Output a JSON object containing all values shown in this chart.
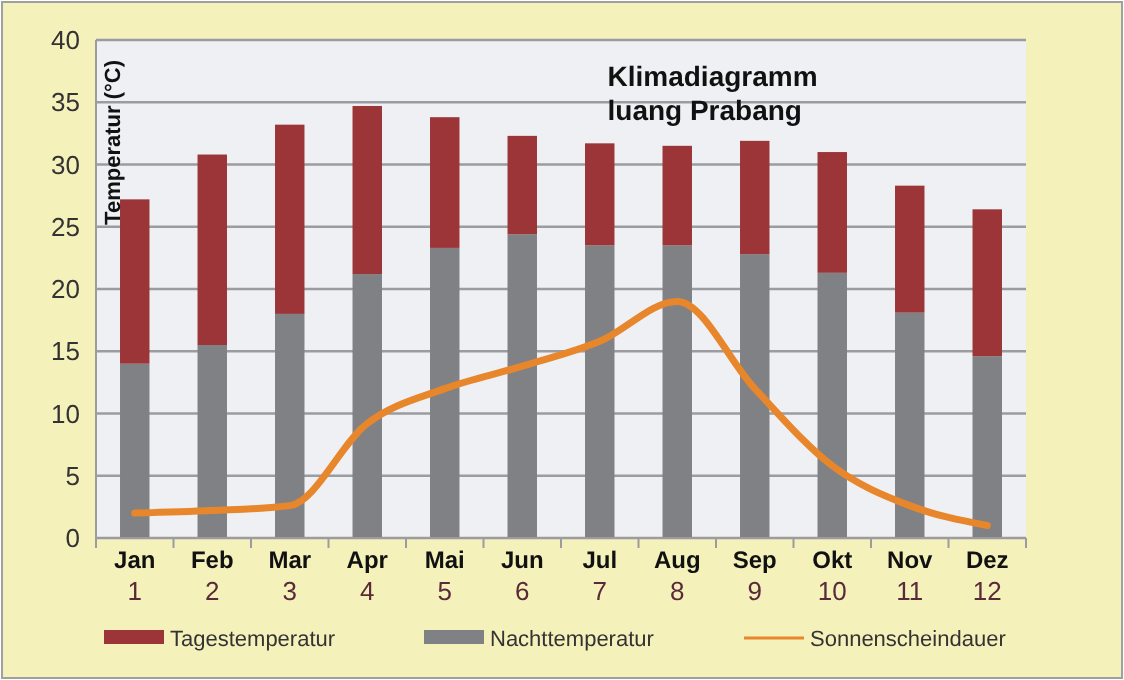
{
  "chart_data": {
    "type": "bar",
    "title": "Klimadiagramm\nluang Prabang",
    "ylabel": "Temperatur (°C)",
    "categories": [
      "Jan 1",
      "Feb 2",
      "Mar 3",
      "Apr 4",
      "Mai 5",
      "Jun 6",
      "Jul 7",
      "Aug 8",
      "Sep 9",
      "Okt 10",
      "Nov 11",
      "Dez 12"
    ],
    "stacked": true,
    "series": [
      {
        "name": "Nachttemperatur",
        "color": "#7f8184",
        "values": [
          14,
          15.5,
          18,
          21.2,
          23.3,
          24.4,
          23.5,
          23.5,
          22.8,
          21.3,
          18.1,
          14.6
        ]
      },
      {
        "name": "Tagestemperatur",
        "color": "#9b3538",
        "values": [
          13.2,
          15.3,
          15.2,
          13.5,
          10.5,
          7.9,
          8.2,
          8,
          9.1,
          9.7,
          10.2,
          11.8
        ]
      },
      {
        "name": "Sonnenscheindauer",
        "type": "line",
        "color": "#e8862c",
        "values": [
          2,
          2.2,
          2.6,
          9.2,
          12,
          13.8,
          15.8,
          19,
          12,
          5.8,
          2.6,
          1
        ]
      }
    ],
    "ylim": [
      0,
      40
    ],
    "yticks": [
      0,
      5,
      10,
      15,
      20,
      25,
      30,
      35,
      40
    ],
    "grid": "y",
    "legend": "bottom",
    "marker": "none"
  }
}
